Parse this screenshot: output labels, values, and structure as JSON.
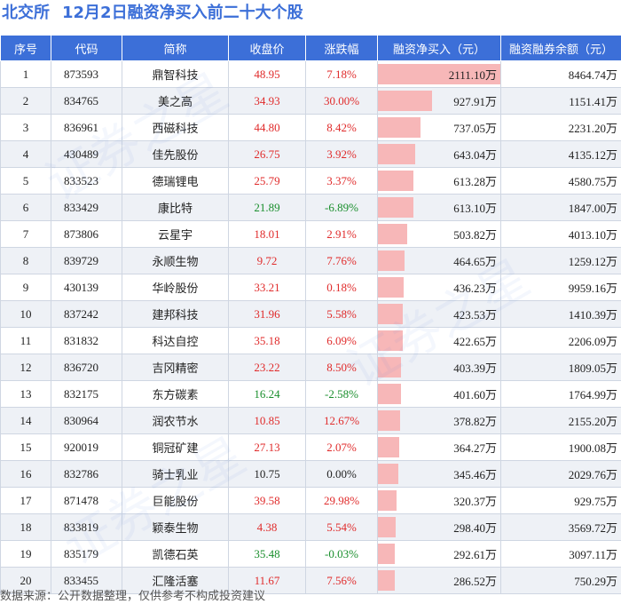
{
  "title": {
    "exchange": "北交所",
    "subtitle": "12月2日融资净买入前二十大个股"
  },
  "table": {
    "headers": {
      "idx": "序号",
      "code": "代码",
      "name": "简称",
      "close": "收盘价",
      "chg": "涨跌幅",
      "buy": "融资净买入（元）",
      "bal": "融资融券余额（元）"
    },
    "max_buy": 2111.1,
    "rows": [
      {
        "idx": "1",
        "code": "873593",
        "name": "鼎智科技",
        "close": "48.95",
        "chg": "7.18%",
        "dir": "up",
        "buy": "2111.10万",
        "buy_value": 2111.1,
        "bal": "8464.74万"
      },
      {
        "idx": "2",
        "code": "834765",
        "name": "美之高",
        "close": "34.93",
        "chg": "30.00%",
        "dir": "up",
        "buy": "927.91万",
        "buy_value": 927.91,
        "bal": "1151.41万"
      },
      {
        "idx": "3",
        "code": "836961",
        "name": "西磁科技",
        "close": "44.80",
        "chg": "8.42%",
        "dir": "up",
        "buy": "737.05万",
        "buy_value": 737.05,
        "bal": "2231.20万"
      },
      {
        "idx": "4",
        "code": "430489",
        "name": "佳先股份",
        "close": "26.75",
        "chg": "3.92%",
        "dir": "up",
        "buy": "643.04万",
        "buy_value": 643.04,
        "bal": "4135.12万"
      },
      {
        "idx": "5",
        "code": "833523",
        "name": "德瑞锂电",
        "close": "25.79",
        "chg": "3.37%",
        "dir": "up",
        "buy": "613.28万",
        "buy_value": 613.28,
        "bal": "4580.75万"
      },
      {
        "idx": "6",
        "code": "833429",
        "name": "康比特",
        "close": "21.89",
        "chg": "-6.89%",
        "dir": "down",
        "buy": "613.10万",
        "buy_value": 613.1,
        "bal": "1847.00万"
      },
      {
        "idx": "7",
        "code": "873806",
        "name": "云星宇",
        "close": "18.01",
        "chg": "2.91%",
        "dir": "up",
        "buy": "503.82万",
        "buy_value": 503.82,
        "bal": "4013.10万"
      },
      {
        "idx": "8",
        "code": "839729",
        "name": "永顺生物",
        "close": "9.72",
        "chg": "7.76%",
        "dir": "up",
        "buy": "464.65万",
        "buy_value": 464.65,
        "bal": "1259.12万"
      },
      {
        "idx": "9",
        "code": "430139",
        "name": "华岭股份",
        "close": "33.21",
        "chg": "0.18%",
        "dir": "up",
        "buy": "436.23万",
        "buy_value": 436.23,
        "bal": "9959.16万"
      },
      {
        "idx": "10",
        "code": "837242",
        "name": "建邦科技",
        "close": "31.96",
        "chg": "5.58%",
        "dir": "up",
        "buy": "423.53万",
        "buy_value": 423.53,
        "bal": "1410.39万"
      },
      {
        "idx": "11",
        "code": "831832",
        "name": "科达自控",
        "close": "35.18",
        "chg": "6.09%",
        "dir": "up",
        "buy": "422.65万",
        "buy_value": 422.65,
        "bal": "2206.09万"
      },
      {
        "idx": "12",
        "code": "836720",
        "name": "吉冈精密",
        "close": "23.22",
        "chg": "8.50%",
        "dir": "up",
        "buy": "403.39万",
        "buy_value": 403.39,
        "bal": "1809.05万"
      },
      {
        "idx": "13",
        "code": "832175",
        "name": "东方碳素",
        "close": "16.24",
        "chg": "-2.58%",
        "dir": "down",
        "buy": "401.60万",
        "buy_value": 401.6,
        "bal": "1764.99万"
      },
      {
        "idx": "14",
        "code": "830964",
        "name": "润农节水",
        "close": "10.85",
        "chg": "12.67%",
        "dir": "up",
        "buy": "378.82万",
        "buy_value": 378.82,
        "bal": "2155.20万"
      },
      {
        "idx": "15",
        "code": "920019",
        "name": "铜冠矿建",
        "close": "27.13",
        "chg": "2.07%",
        "dir": "up",
        "buy": "364.27万",
        "buy_value": 364.27,
        "bal": "1900.08万"
      },
      {
        "idx": "16",
        "code": "832786",
        "name": "骑士乳业",
        "close": "10.75",
        "chg": "0.00%",
        "dir": "flat",
        "buy": "345.46万",
        "buy_value": 345.46,
        "bal": "2029.76万"
      },
      {
        "idx": "17",
        "code": "871478",
        "name": "巨能股份",
        "close": "39.58",
        "chg": "29.98%",
        "dir": "up",
        "buy": "320.37万",
        "buy_value": 320.37,
        "bal": "929.75万"
      },
      {
        "idx": "18",
        "code": "833819",
        "name": "颖泰生物",
        "close": "4.38",
        "chg": "5.54%",
        "dir": "up",
        "buy": "298.40万",
        "buy_value": 298.4,
        "bal": "3569.72万"
      },
      {
        "idx": "19",
        "code": "835179",
        "name": "凯德石英",
        "close": "35.48",
        "chg": "-0.03%",
        "dir": "down",
        "buy": "292.61万",
        "buy_value": 292.61,
        "bal": "3097.11万"
      },
      {
        "idx": "20",
        "code": "833455",
        "name": "汇隆活塞",
        "close": "11.67",
        "chg": "7.56%",
        "dir": "up",
        "buy": "286.52万",
        "buy_value": 286.52,
        "bal": "750.29万"
      }
    ]
  },
  "source": "数据来源：公开数据整理，仅供参考不构成投资建议",
  "colors": {
    "header_bg": "#3c6fd8",
    "up": "#e02b2b",
    "down": "#1a8f2d",
    "bar": "#f7b7b8",
    "stripe": "#eef1f6"
  }
}
